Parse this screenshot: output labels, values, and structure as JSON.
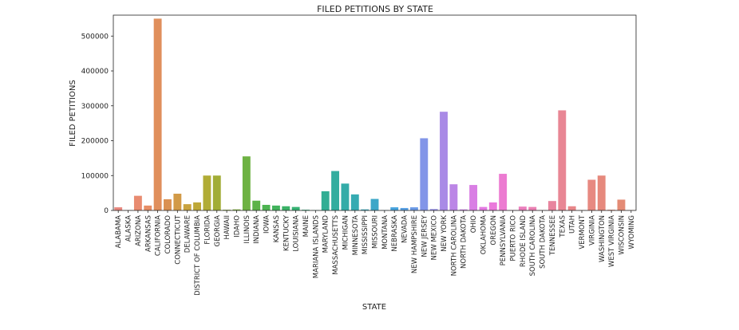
{
  "chart_data": {
    "type": "bar",
    "title": "FILED PETITIONS BY STATE",
    "xlabel": "STATE",
    "ylabel": "FILED PETITIONS",
    "ylim": [
      0,
      560000
    ],
    "yticks": [
      0,
      100000,
      200000,
      300000,
      400000,
      500000
    ],
    "ytick_labels": [
      "0",
      "100000",
      "200000",
      "300000",
      "400000",
      "500000"
    ],
    "grid": false,
    "legend": "none",
    "palette": [
      "#e8877e",
      "#e9897a",
      "#e88b70",
      "#e68e66",
      "#e08f5c",
      "#da9152",
      "#d29a47",
      "#c9a33f",
      "#bea838",
      "#b1ac35",
      "#a2ad36",
      "#91b03a",
      "#7fb13e",
      "#6eb243",
      "#5cb348",
      "#4db451",
      "#42b35c",
      "#3bb267",
      "#36b273",
      "#33b17e",
      "#32b089",
      "#32ae94",
      "#33ad9f",
      "#34aca8",
      "#36abb2",
      "#39a9bd",
      "#3ca7c8",
      "#41a5d2",
      "#47a3dd",
      "#579fe3",
      "#6c9ae6",
      "#8295e8",
      "#9690e7",
      "#a98ae6",
      "#bb86e6",
      "#cb82e5",
      "#d97ee4",
      "#e47ae2",
      "#ea79db",
      "#ec7bd1",
      "#ec7dc7",
      "#eb7fbd",
      "#ea81b3",
      "#e982a8",
      "#e8849e",
      "#e88694",
      "#e8878a",
      "#e8887f",
      "#e78981",
      "#e6897d",
      "#e58a79",
      "#e48b75",
      "#e38c71",
      "#e28d6d"
    ],
    "categories": [
      "ALABAMA",
      "ALASKA",
      "ARIZONA",
      "ARKANSAS",
      "CALIFORNIA",
      "COLORADO",
      "CONNECTICUT",
      "DELAWARE",
      "DISTRICT OF COLUMBIA",
      "FLORIDA",
      "GEORGIA",
      "HAWAII",
      "IDAHO",
      "ILLINOIS",
      "INDIANA",
      "IOWA",
      "KANSAS",
      "KENTUCKY",
      "LOUISIANA",
      "MAINE",
      "MARIANA ISLANDS",
      "MARYLAND",
      "MASSACHUSETTS",
      "MICHIGAN",
      "MINNESOTA",
      "MISSISSIPPI",
      "MISSOURI",
      "MONTANA",
      "NEBRASKA",
      "NEVADA",
      "NEW HAMPSHIRE",
      "NEW JERSEY",
      "NEW MEXICO",
      "NEW YORK",
      "NORTH CAROLINA",
      "NORTH DAKOTA",
      "OHIO",
      "OKLAHOMA",
      "OREGON",
      "PENNSYLVANIA",
      "PUERTO RICO",
      "RHODE ISLAND",
      "SOUTH CAROLINA",
      "SOUTH DAKOTA",
      "TENNESSEE",
      "TEXAS",
      "UTAH",
      "VERMONT",
      "VIRGINIA",
      "WASHINGTON",
      "WEST VIRGINIA",
      "WISCONSIN",
      "WYOMING"
    ],
    "values": [
      9000,
      1000,
      42000,
      14000,
      550000,
      32000,
      48000,
      18000,
      23000,
      100000,
      100000,
      2000,
      3000,
      155000,
      28000,
      16000,
      14000,
      12000,
      10000,
      2000,
      1000,
      55000,
      113000,
      77000,
      46000,
      3000,
      33000,
      1000,
      9000,
      7000,
      9000,
      207000,
      4000,
      283000,
      75000,
      3000,
      73000,
      10000,
      23000,
      105000,
      1000,
      11000,
      10000,
      1000,
      27000,
      287000,
      12000,
      1000,
      88000,
      100000,
      2000,
      31000,
      1000
    ]
  }
}
